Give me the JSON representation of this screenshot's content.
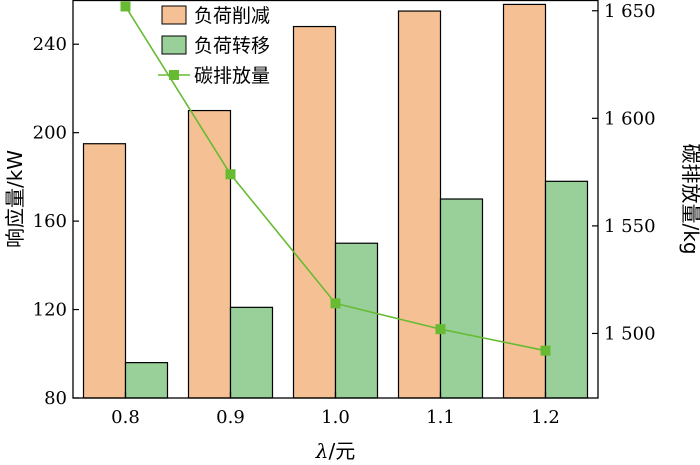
{
  "chart_data": {
    "type": "bar",
    "categories": [
      "0.8",
      "0.9",
      "1.0",
      "1.1",
      "1.2"
    ],
    "series": [
      {
        "name": "负荷削减",
        "axis": "left",
        "kind": "bar",
        "color": "#F5C094",
        "values": [
          195,
          210,
          248,
          255,
          258
        ]
      },
      {
        "name": "负荷转移",
        "axis": "left",
        "kind": "bar",
        "color": "#99CF99",
        "values": [
          96,
          121,
          150,
          170,
          178
        ]
      },
      {
        "name": "碳排放量",
        "axis": "right",
        "kind": "line",
        "color": "#66BB33",
        "values": [
          1652,
          1574,
          1514,
          1502,
          1492
        ]
      }
    ],
    "xlabel_italic": "λ",
    "xlabel_rest": "/元",
    "ylabel": "响应量/kW",
    "y2label": "碳排放量/kg",
    "ylim": [
      80,
      260
    ],
    "yticks": [
      80,
      120,
      160,
      200,
      240
    ],
    "y2lim": [
      1470,
      1655
    ],
    "y2ticks": [
      1500,
      1550,
      1600,
      1650
    ],
    "y2tick_labels": [
      "1 500",
      "1 550",
      "1 600",
      "1 650"
    ],
    "legend_position": "top-center",
    "grid": false
  }
}
